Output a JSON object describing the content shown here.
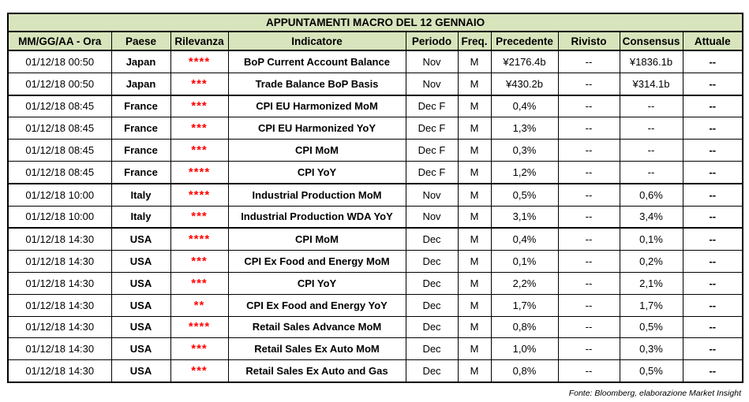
{
  "title": "APPUNTAMENTI MACRO DEL 12 GENNAIO",
  "headers": [
    "MM/GG/AA - Ora",
    "Paese",
    "Rilevanza",
    "Indicatore",
    "Periodo",
    "Freq.",
    "Precedente",
    "Rivisto",
    "Consensus",
    "Attuale"
  ],
  "rows": [
    {
      "date": "01/12/18 00:50",
      "country": "Japan",
      "stars": "****",
      "indicator": "BoP Current Account Balance",
      "period": "Nov",
      "freq": "M",
      "previous": "¥2176.4b",
      "revised": "--",
      "consensus": "¥1836.1b",
      "actual": "--"
    },
    {
      "date": "01/12/18 00:50",
      "country": "Japan",
      "stars": "***",
      "indicator": "Trade Balance BoP Basis",
      "period": "Nov",
      "freq": "M",
      "previous": "¥430.2b",
      "revised": "--",
      "consensus": "¥314.1b",
      "actual": "--"
    },
    {
      "date": "01/12/18 08:45",
      "country": "France",
      "stars": "***",
      "indicator": "CPI EU Harmonized MoM",
      "period": "Dec F",
      "freq": "M",
      "previous": "0,4%",
      "revised": "--",
      "consensus": "--",
      "actual": "--"
    },
    {
      "date": "01/12/18 08:45",
      "country": "France",
      "stars": "***",
      "indicator": "CPI EU Harmonized YoY",
      "period": "Dec F",
      "freq": "M",
      "previous": "1,3%",
      "revised": "--",
      "consensus": "--",
      "actual": "--"
    },
    {
      "date": "01/12/18 08:45",
      "country": "France",
      "stars": "***",
      "indicator": "CPI MoM",
      "period": "Dec F",
      "freq": "M",
      "previous": "0,3%",
      "revised": "--",
      "consensus": "--",
      "actual": "--"
    },
    {
      "date": "01/12/18 08:45",
      "country": "France",
      "stars": "****",
      "indicator": "CPI YoY",
      "period": "Dec F",
      "freq": "M",
      "previous": "1,2%",
      "revised": "--",
      "consensus": "--",
      "actual": "--"
    },
    {
      "date": "01/12/18 10:00",
      "country": "Italy",
      "stars": "****",
      "indicator": "Industrial Production MoM",
      "period": "Nov",
      "freq": "M",
      "previous": "0,5%",
      "revised": "--",
      "consensus": "0,6%",
      "actual": "--"
    },
    {
      "date": "01/12/18 10:00",
      "country": "Italy",
      "stars": "***",
      "indicator": "Industrial Production WDA YoY",
      "period": "Nov",
      "freq": "M",
      "previous": "3,1%",
      "revised": "--",
      "consensus": "3,4%",
      "actual": "--"
    },
    {
      "date": "01/12/18 14:30",
      "country": "USA",
      "stars": "****",
      "indicator": "CPI MoM",
      "period": "Dec",
      "freq": "M",
      "previous": "0,4%",
      "revised": "--",
      "consensus": "0,1%",
      "actual": "--"
    },
    {
      "date": "01/12/18 14:30",
      "country": "USA",
      "stars": "***",
      "indicator": "CPI Ex Food and Energy MoM",
      "period": "Dec",
      "freq": "M",
      "previous": "0,1%",
      "revised": "--",
      "consensus": "0,2%",
      "actual": "--"
    },
    {
      "date": "01/12/18 14:30",
      "country": "USA",
      "stars": "***",
      "indicator": "CPI YoY",
      "period": "Dec",
      "freq": "M",
      "previous": "2,2%",
      "revised": "--",
      "consensus": "2,1%",
      "actual": "--"
    },
    {
      "date": "01/12/18 14:30",
      "country": "USA",
      "stars": "**",
      "indicator": "CPI Ex Food and Energy YoY",
      "period": "Dec",
      "freq": "M",
      "previous": "1,7%",
      "revised": "--",
      "consensus": "1,7%",
      "actual": "--"
    },
    {
      "date": "01/12/18 14:30",
      "country": "USA",
      "stars": "****",
      "indicator": "Retail Sales Advance MoM",
      "period": "Dec",
      "freq": "M",
      "previous": "0,8%",
      "revised": "--",
      "consensus": "0,5%",
      "actual": "--"
    },
    {
      "date": "01/12/18 14:30",
      "country": "USA",
      "stars": "***",
      "indicator": "Retail Sales Ex Auto MoM",
      "period": "Dec",
      "freq": "M",
      "previous": "1,0%",
      "revised": "--",
      "consensus": "0,3%",
      "actual": "--"
    },
    {
      "date": "01/12/18 14:30",
      "country": "USA",
      "stars": "***",
      "indicator": "Retail Sales Ex Auto and Gas",
      "period": "Dec",
      "freq": "M",
      "previous": "0,8%",
      "revised": "--",
      "consensus": "0,5%",
      "actual": "--"
    }
  ],
  "source": "Fonte: Bloomberg, elaborazione Market Insight",
  "colors": {
    "header_bg": "#d8e4bc",
    "stars": "#ff0000"
  }
}
